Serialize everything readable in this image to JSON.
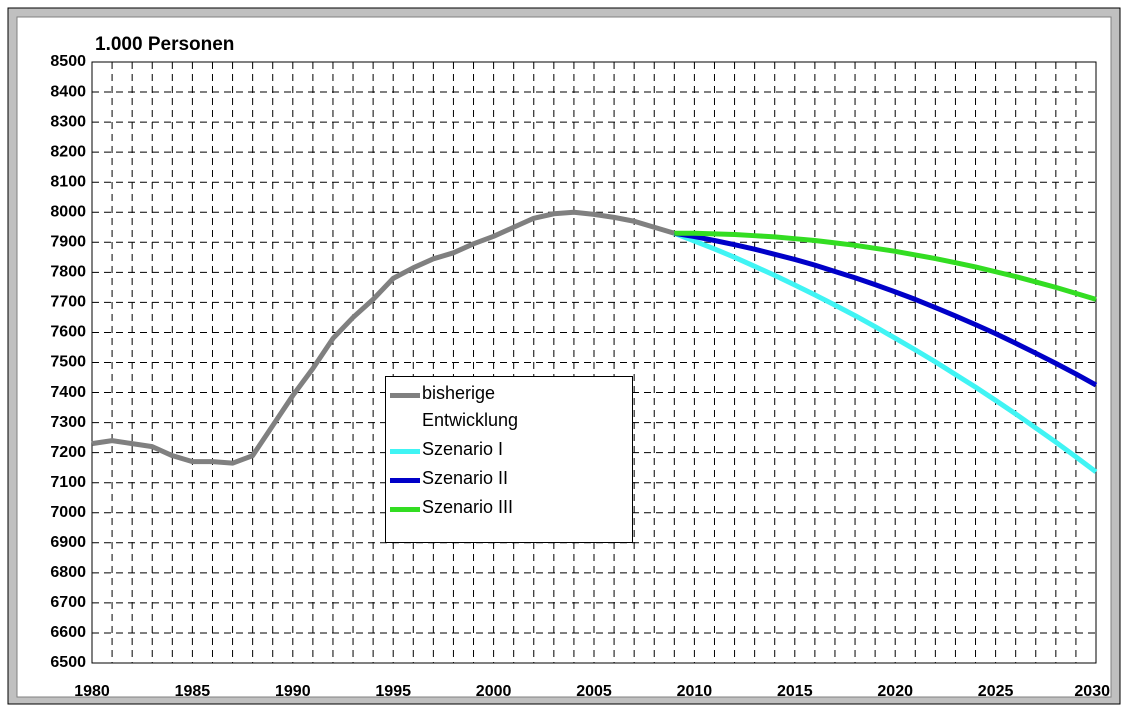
{
  "chart_data": {
    "type": "line",
    "title": "1.000 Personen",
    "x": [
      1980,
      1981,
      1982,
      1983,
      1984,
      1985,
      1986,
      1987,
      1988,
      1989,
      1990,
      1991,
      1992,
      1993,
      1994,
      1995,
      1996,
      1997,
      1998,
      1999,
      2000,
      2001,
      2002,
      2003,
      2004,
      2005,
      2006,
      2007,
      2008,
      2009,
      2010,
      2011,
      2012,
      2013,
      2014,
      2015,
      2016,
      2017,
      2018,
      2019,
      2020,
      2021,
      2022,
      2023,
      2024,
      2025,
      2026,
      2027,
      2028,
      2029,
      2030
    ],
    "xlim": [
      1980,
      2030
    ],
    "xticks": [
      1980,
      1985,
      1990,
      1995,
      2000,
      2005,
      2010,
      2015,
      2020,
      2025,
      2030
    ],
    "ylim": [
      6500,
      8500
    ],
    "yticks": [
      6500,
      6600,
      6700,
      6800,
      6900,
      7000,
      7100,
      7200,
      7300,
      7400,
      7500,
      7600,
      7700,
      7800,
      7900,
      8000,
      8100,
      8200,
      8300,
      8400,
      8500
    ],
    "grid": true,
    "series": [
      {
        "name": "bisherige Entwicklung",
        "color": "#808080",
        "values": [
          7230,
          7240,
          7230,
          7220,
          7190,
          7170,
          7170,
          7165,
          7190,
          7290,
          7390,
          7480,
          7580,
          7650,
          7710,
          7780,
          7815,
          7845,
          7865,
          7895,
          7920,
          7950,
          7980,
          7995,
          8000,
          7993,
          7983,
          7970,
          7950,
          7930,
          null,
          null,
          null,
          null,
          null,
          null,
          null,
          null,
          null,
          null,
          null,
          null,
          null,
          null,
          null,
          null,
          null,
          null,
          null,
          null,
          null
        ]
      },
      {
        "name": "Szenario I",
        "color": "#40f4f4",
        "values": [
          null,
          null,
          null,
          null,
          null,
          null,
          null,
          null,
          null,
          null,
          null,
          null,
          null,
          null,
          null,
          null,
          null,
          null,
          null,
          null,
          null,
          null,
          null,
          null,
          null,
          null,
          null,
          null,
          null,
          7930,
          7904,
          7878,
          7850,
          7820,
          7790,
          7758,
          7725,
          7691,
          7656,
          7619,
          7581,
          7542,
          7502,
          7460,
          7418,
          7374,
          7329,
          7282,
          7235,
          7186,
          7136
        ]
      },
      {
        "name": "Szenario II",
        "color": "#0000c8",
        "values": [
          null,
          null,
          null,
          null,
          null,
          null,
          null,
          null,
          null,
          null,
          null,
          null,
          null,
          null,
          null,
          null,
          null,
          null,
          null,
          null,
          null,
          null,
          null,
          null,
          null,
          null,
          null,
          null,
          null,
          7930,
          7919,
          7906,
          7892,
          7877,
          7860,
          7843,
          7824,
          7803,
          7782,
          7759,
          7735,
          7710,
          7683,
          7655,
          7626,
          7596,
          7564,
          7531,
          7497,
          7462,
          7425
        ]
      },
      {
        "name": "Szenario III",
        "color": "#33dd22",
        "values": [
          null,
          null,
          null,
          null,
          null,
          null,
          null,
          null,
          null,
          null,
          null,
          null,
          null,
          null,
          null,
          null,
          null,
          null,
          null,
          null,
          null,
          null,
          null,
          null,
          null,
          null,
          null,
          null,
          null,
          7930,
          7930,
          7928,
          7926,
          7922,
          7918,
          7912,
          7906,
          7898,
          7890,
          7880,
          7870,
          7858,
          7846,
          7832,
          7818,
          7802,
          7786,
          7768,
          7750,
          7730,
          7710
        ]
      }
    ]
  }
}
